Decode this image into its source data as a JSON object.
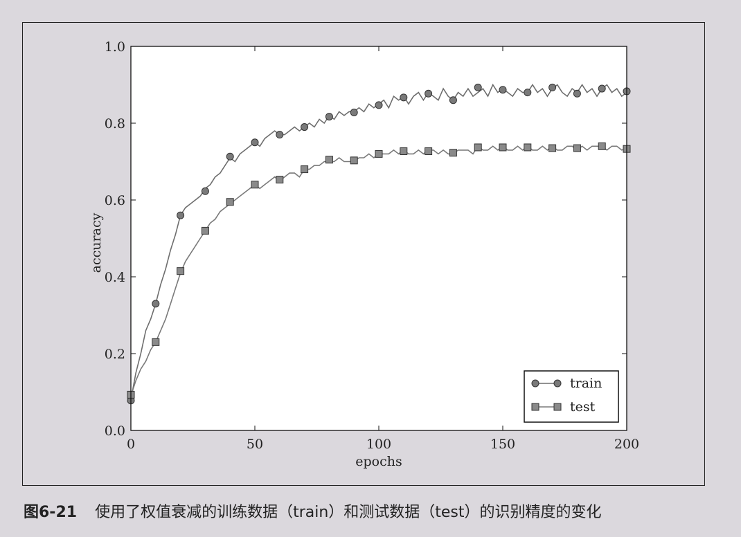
{
  "caption": {
    "figure_number": "图6-21",
    "text": "使用了权值衰减的训练数据（train）和测试数据（test）的识别精度的变化"
  },
  "chart_data": {
    "type": "line",
    "xlabel": "epochs",
    "ylabel": "accuracy",
    "xlim": [
      0,
      200
    ],
    "ylim": [
      0.0,
      1.0
    ],
    "xticks": [
      0,
      50,
      100,
      150,
      200
    ],
    "yticks": [
      0.0,
      0.2,
      0.4,
      0.6,
      0.8,
      1.0
    ],
    "xtick_labels": [
      "0",
      "50",
      "100",
      "150",
      "200"
    ],
    "ytick_labels": [
      "0.0",
      "0.2",
      "0.4",
      "0.6",
      "0.8",
      "1.0"
    ],
    "grid": false,
    "legend_position": "lower-right",
    "series": [
      {
        "name": "train",
        "marker": "circle",
        "color": "#6e6e6e",
        "marker_color": "#7a7a7a",
        "line": {
          "x": [
            0,
            2,
            4,
            6,
            8,
            10,
            12,
            14,
            16,
            18,
            20,
            22,
            24,
            26,
            28,
            30,
            32,
            34,
            36,
            38,
            40,
            42,
            44,
            46,
            48,
            50,
            52,
            54,
            56,
            58,
            60,
            62,
            64,
            66,
            68,
            70,
            72,
            74,
            76,
            78,
            80,
            82,
            84,
            86,
            88,
            90,
            92,
            94,
            96,
            98,
            100,
            102,
            104,
            106,
            108,
            110,
            112,
            114,
            116,
            118,
            120,
            122,
            124,
            126,
            128,
            130,
            132,
            134,
            136,
            138,
            140,
            142,
            144,
            146,
            148,
            150,
            152,
            154,
            156,
            158,
            160,
            162,
            164,
            166,
            168,
            170,
            172,
            174,
            176,
            178,
            180,
            182,
            184,
            186,
            188,
            190,
            192,
            194,
            196,
            198,
            200
          ],
          "y": [
            0.08,
            0.15,
            0.2,
            0.26,
            0.29,
            0.33,
            0.38,
            0.42,
            0.47,
            0.51,
            0.56,
            0.58,
            0.59,
            0.6,
            0.61,
            0.63,
            0.64,
            0.66,
            0.67,
            0.69,
            0.71,
            0.7,
            0.72,
            0.73,
            0.74,
            0.75,
            0.74,
            0.76,
            0.77,
            0.78,
            0.77,
            0.77,
            0.78,
            0.79,
            0.78,
            0.79,
            0.8,
            0.79,
            0.81,
            0.8,
            0.82,
            0.81,
            0.83,
            0.82,
            0.83,
            0.83,
            0.84,
            0.83,
            0.85,
            0.84,
            0.85,
            0.86,
            0.84,
            0.87,
            0.86,
            0.87,
            0.85,
            0.87,
            0.88,
            0.86,
            0.88,
            0.87,
            0.86,
            0.89,
            0.87,
            0.86,
            0.88,
            0.87,
            0.89,
            0.87,
            0.88,
            0.89,
            0.87,
            0.9,
            0.88,
            0.89,
            0.88,
            0.87,
            0.89,
            0.88,
            0.88,
            0.9,
            0.88,
            0.89,
            0.87,
            0.89,
            0.9,
            0.88,
            0.87,
            0.89,
            0.88,
            0.9,
            0.88,
            0.89,
            0.87,
            0.89,
            0.9,
            0.88,
            0.89,
            0.87,
            0.88
          ]
        },
        "markers": {
          "x": [
            0,
            10,
            20,
            30,
            40,
            50,
            60,
            70,
            80,
            90,
            100,
            110,
            120,
            130,
            140,
            150,
            160,
            170,
            180,
            190,
            200
          ],
          "y": [
            0.078,
            0.33,
            0.56,
            0.623,
            0.713,
            0.75,
            0.77,
            0.79,
            0.817,
            0.828,
            0.847,
            0.867,
            0.877,
            0.86,
            0.893,
            0.887,
            0.88,
            0.893,
            0.877,
            0.89,
            0.883
          ]
        }
      },
      {
        "name": "test",
        "marker": "square",
        "color": "#7a7a7a",
        "marker_color": "#8a8a8a",
        "line": {
          "x": [
            0,
            2,
            4,
            6,
            8,
            10,
            12,
            14,
            16,
            18,
            20,
            22,
            24,
            26,
            28,
            30,
            32,
            34,
            36,
            38,
            40,
            42,
            44,
            46,
            48,
            50,
            52,
            54,
            56,
            58,
            60,
            62,
            64,
            66,
            68,
            70,
            72,
            74,
            76,
            78,
            80,
            82,
            84,
            86,
            88,
            90,
            92,
            94,
            96,
            98,
            100,
            102,
            104,
            106,
            108,
            110,
            112,
            114,
            116,
            118,
            120,
            122,
            124,
            126,
            128,
            130,
            132,
            134,
            136,
            138,
            140,
            142,
            144,
            146,
            148,
            150,
            152,
            154,
            156,
            158,
            160,
            162,
            164,
            166,
            168,
            170,
            172,
            174,
            176,
            178,
            180,
            182,
            184,
            186,
            188,
            190,
            192,
            194,
            196,
            198,
            200
          ],
          "y": [
            0.09,
            0.13,
            0.16,
            0.18,
            0.21,
            0.23,
            0.26,
            0.29,
            0.33,
            0.37,
            0.41,
            0.44,
            0.46,
            0.48,
            0.5,
            0.52,
            0.54,
            0.55,
            0.57,
            0.58,
            0.59,
            0.6,
            0.61,
            0.62,
            0.63,
            0.64,
            0.63,
            0.64,
            0.65,
            0.66,
            0.65,
            0.66,
            0.67,
            0.67,
            0.66,
            0.68,
            0.68,
            0.69,
            0.69,
            0.7,
            0.7,
            0.7,
            0.71,
            0.7,
            0.7,
            0.7,
            0.71,
            0.71,
            0.72,
            0.71,
            0.72,
            0.72,
            0.72,
            0.73,
            0.72,
            0.73,
            0.72,
            0.72,
            0.73,
            0.72,
            0.73,
            0.73,
            0.72,
            0.73,
            0.72,
            0.72,
            0.73,
            0.73,
            0.73,
            0.72,
            0.74,
            0.73,
            0.73,
            0.74,
            0.73,
            0.74,
            0.73,
            0.73,
            0.74,
            0.73,
            0.74,
            0.73,
            0.73,
            0.74,
            0.73,
            0.74,
            0.73,
            0.73,
            0.74,
            0.74,
            0.73,
            0.74,
            0.73,
            0.74,
            0.74,
            0.74,
            0.73,
            0.74,
            0.74,
            0.73,
            0.735
          ]
        },
        "markers": {
          "x": [
            0,
            10,
            20,
            30,
            40,
            50,
            60,
            70,
            80,
            90,
            100,
            110,
            120,
            130,
            140,
            150,
            160,
            170,
            180,
            190,
            200
          ],
          "y": [
            0.093,
            0.23,
            0.415,
            0.52,
            0.595,
            0.64,
            0.653,
            0.68,
            0.705,
            0.703,
            0.72,
            0.727,
            0.727,
            0.723,
            0.737,
            0.737,
            0.737,
            0.735,
            0.735,
            0.74,
            0.733
          ]
        }
      }
    ]
  }
}
